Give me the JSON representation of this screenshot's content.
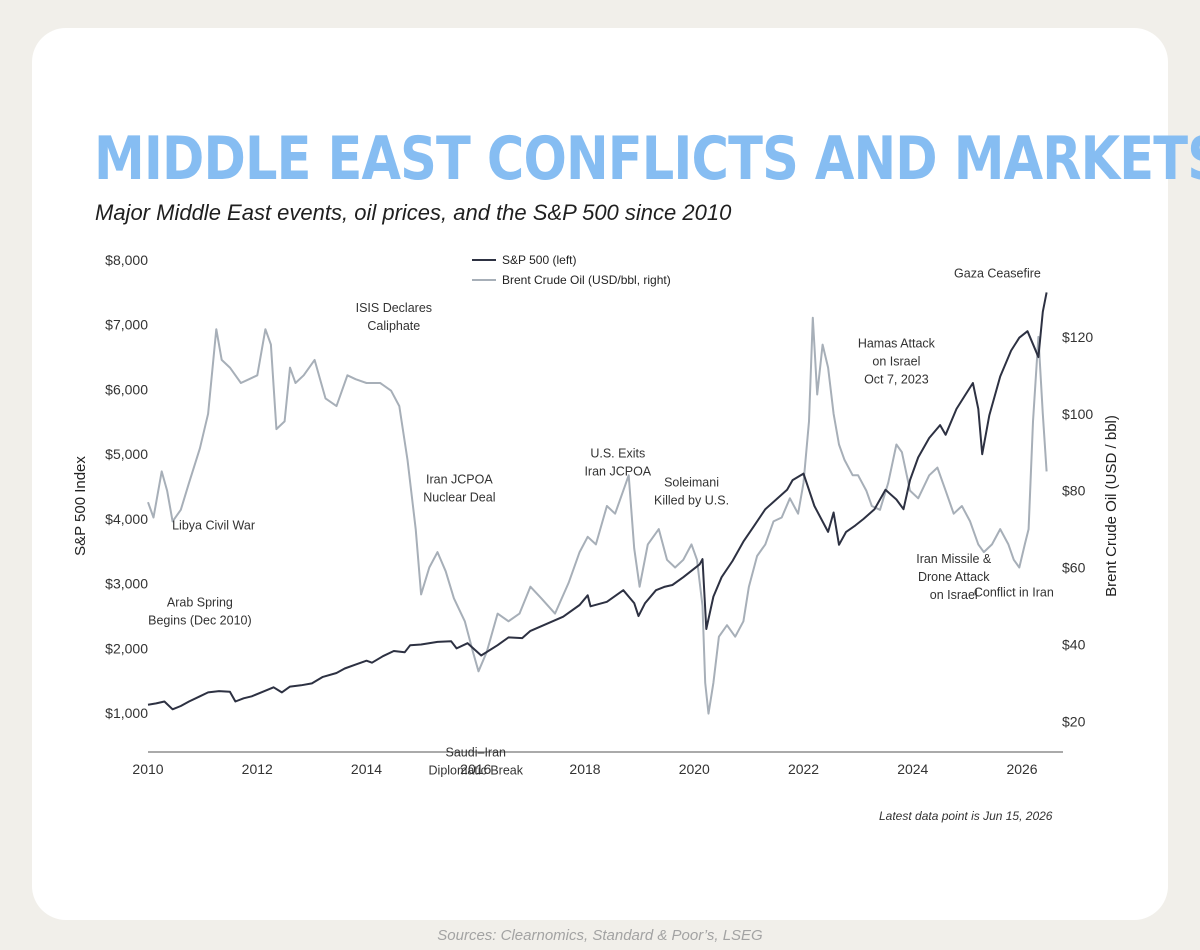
{
  "header": {
    "title": "MIDDLE EAST CONFLICTS AND MARKETS",
    "subtitle": "Major Middle East events, oil prices, and the S&P 500 since 2010"
  },
  "footer": {
    "note": "Latest data point is Jun 15, 2026",
    "sources": "Sources: Clearnomics, Standard & Poor’s, LSEG"
  },
  "colors": {
    "title": "#86bdf2",
    "sp500": "#2d3142",
    "brent": "#a7afb8",
    "background": "#f1efea"
  },
  "chart_data": {
    "type": "line",
    "title": "MIDDLE EAST CONFLICTS AND MARKETS",
    "subtitle": "Major Middle East events, oil prices, and the S&P 500 since 2010",
    "xlabel": "",
    "ylabel": "S&P 500 Index",
    "y2label": "Brent Crude Oil (USD / bbl)",
    "xlim": [
      2010,
      2026.75
    ],
    "ylim": [
      400,
      8000
    ],
    "y2lim": [
      12,
      140
    ],
    "x_ticks": [
      2010,
      2012,
      2014,
      2016,
      2018,
      2020,
      2022,
      2024,
      2026
    ],
    "x_tick_labels": [
      "2010",
      "2012",
      "2014",
      "2016",
      "2018",
      "2020",
      "2022",
      "2024",
      "2026"
    ],
    "y_ticks": [
      1000,
      2000,
      3000,
      4000,
      5000,
      6000,
      7000,
      8000
    ],
    "y_tick_labels": [
      "$1,000",
      "$2,000",
      "$3,000",
      "$4,000",
      "$5,000",
      "$6,000",
      "$7,000",
      "$8,000"
    ],
    "y2_ticks": [
      20,
      40,
      60,
      80,
      100,
      120
    ],
    "y2_tick_labels": [
      "$20",
      "$40",
      "$60",
      "$80",
      "$100",
      "$120"
    ],
    "grid": false,
    "legend_position": "top-center",
    "series": [
      {
        "name": "S&P 500 (left)",
        "axis": "left",
        "x": [
          2010.0,
          2010.15,
          2010.3,
          2010.45,
          2010.6,
          2010.75,
          2010.95,
          2011.1,
          2011.3,
          2011.5,
          2011.6,
          2011.75,
          2011.9,
          2012.1,
          2012.3,
          2012.45,
          2012.6,
          2012.8,
          2013.0,
          2013.2,
          2013.45,
          2013.6,
          2013.8,
          2014.0,
          2014.1,
          2014.3,
          2014.5,
          2014.7,
          2014.8,
          2015.0,
          2015.3,
          2015.55,
          2015.65,
          2015.85,
          2016.1,
          2016.4,
          2016.6,
          2016.85,
          2017.0,
          2017.3,
          2017.6,
          2017.9,
          2018.05,
          2018.1,
          2018.4,
          2018.7,
          2018.9,
          2018.98,
          2019.1,
          2019.3,
          2019.45,
          2019.6,
          2019.8,
          2020.1,
          2020.15,
          2020.22,
          2020.35,
          2020.5,
          2020.7,
          2020.9,
          2021.1,
          2021.3,
          2021.5,
          2021.7,
          2021.8,
          2022.0,
          2022.2,
          2022.45,
          2022.55,
          2022.65,
          2022.78,
          2022.95,
          2023.1,
          2023.3,
          2023.5,
          2023.7,
          2023.83,
          2023.95,
          2024.1,
          2024.3,
          2024.5,
          2024.6,
          2024.8,
          2024.95,
          2025.1,
          2025.2,
          2025.27,
          2025.4,
          2025.6,
          2025.8,
          2025.95,
          2026.1,
          2026.2,
          2026.3,
          2026.38,
          2026.45
        ],
        "values": [
          1130,
          1150,
          1180,
          1060,
          1110,
          1180,
          1260,
          1320,
          1340,
          1330,
          1180,
          1230,
          1260,
          1330,
          1400,
          1320,
          1410,
          1430,
          1460,
          1560,
          1620,
          1690,
          1750,
          1810,
          1780,
          1880,
          1960,
          1940,
          2050,
          2060,
          2100,
          2110,
          2000,
          2080,
          1890,
          2050,
          2170,
          2160,
          2270,
          2380,
          2490,
          2670,
          2820,
          2650,
          2720,
          2900,
          2700,
          2500,
          2700,
          2900,
          2950,
          2980,
          3100,
          3300,
          3380,
          2300,
          2800,
          3100,
          3350,
          3650,
          3900,
          4150,
          4300,
          4450,
          4600,
          4700,
          4200,
          3800,
          4100,
          3600,
          3800,
          3900,
          4000,
          4150,
          4450,
          4300,
          4150,
          4600,
          4950,
          5250,
          5450,
          5300,
          5700,
          5900,
          6100,
          5700,
          5000,
          5600,
          6200,
          6600,
          6800,
          6900,
          6700,
          6500,
          7200,
          7500
        ]
      },
      {
        "name": "Brent Crude Oil (USD/bbl, right)",
        "axis": "right",
        "x": [
          2010.0,
          2010.1,
          2010.25,
          2010.35,
          2010.45,
          2010.6,
          2010.75,
          2010.95,
          2011.1,
          2011.25,
          2011.35,
          2011.5,
          2011.7,
          2011.85,
          2012.0,
          2012.15,
          2012.25,
          2012.35,
          2012.5,
          2012.6,
          2012.7,
          2012.85,
          2013.05,
          2013.25,
          2013.45,
          2013.65,
          2013.8,
          2014.0,
          2014.25,
          2014.45,
          2014.6,
          2014.75,
          2014.9,
          2015.0,
          2015.15,
          2015.3,
          2015.45,
          2015.6,
          2015.8,
          2015.95,
          2016.05,
          2016.2,
          2016.4,
          2016.6,
          2016.8,
          2017.0,
          2017.2,
          2017.45,
          2017.7,
          2017.9,
          2018.05,
          2018.2,
          2018.4,
          2018.55,
          2018.7,
          2018.8,
          2018.9,
          2019.0,
          2019.15,
          2019.35,
          2019.5,
          2019.65,
          2019.8,
          2019.95,
          2020.05,
          2020.15,
          2020.2,
          2020.26,
          2020.35,
          2020.45,
          2020.6,
          2020.75,
          2020.9,
          2021.0,
          2021.15,
          2021.3,
          2021.45,
          2021.6,
          2021.75,
          2021.9,
          2022.0,
          2022.1,
          2022.17,
          2022.25,
          2022.35,
          2022.45,
          2022.55,
          2022.65,
          2022.75,
          2022.9,
          2023.0,
          2023.15,
          2023.25,
          2023.4,
          2023.55,
          2023.7,
          2023.8,
          2023.95,
          2024.1,
          2024.3,
          2024.45,
          2024.6,
          2024.75,
          2024.9,
          2025.05,
          2025.2,
          2025.3,
          2025.45,
          2025.6,
          2025.75,
          2025.85,
          2025.95,
          2026.05,
          2026.12,
          2026.2,
          2026.3,
          2026.38,
          2026.45
        ],
        "values": [
          77,
          73,
          85,
          80,
          72,
          75,
          82,
          91,
          100,
          122,
          114,
          112,
          108,
          109,
          110,
          122,
          118,
          96,
          98,
          112,
          108,
          110,
          114,
          104,
          102,
          110,
          109,
          108,
          108,
          106,
          102,
          88,
          70,
          53,
          60,
          64,
          59,
          52,
          46,
          38,
          33,
          38,
          48,
          46,
          48,
          55,
          52,
          48,
          56,
          64,
          68,
          66,
          76,
          74,
          80,
          84,
          65,
          55,
          66,
          70,
          62,
          60,
          62,
          66,
          62,
          50,
          30,
          22,
          30,
          42,
          45,
          42,
          46,
          55,
          63,
          66,
          72,
          73,
          78,
          74,
          82,
          98,
          125,
          105,
          118,
          112,
          100,
          92,
          88,
          84,
          84,
          80,
          76,
          75,
          82,
          92,
          90,
          80,
          78,
          84,
          86,
          80,
          74,
          76,
          72,
          66,
          64,
          66,
          70,
          66,
          62,
          60,
          66,
          70,
          98,
          120,
          100,
          85
        ]
      }
    ],
    "annotations": [
      {
        "lines": [
          "Libya Civil War"
        ],
        "x": 2011.2,
        "y_axis": "left",
        "y": 3840
      },
      {
        "lines": [
          "Arab Spring",
          "Begins (Dec 2010)"
        ],
        "x": 2010.95,
        "y_axis": "left",
        "y": 2650
      },
      {
        "lines": [
          "ISIS Declares",
          "Caliphate"
        ],
        "x": 2014.5,
        "y_axis": "left",
        "y": 7200
      },
      {
        "lines": [
          "Iran JCPOA",
          "Nuclear Deal"
        ],
        "x": 2015.7,
        "y_axis": "left",
        "y": 4550
      },
      {
        "lines": [
          "Saudi–Iran",
          "Diplomatic Break"
        ],
        "x": 2016.0,
        "y_axis": "left",
        "y": 330
      },
      {
        "lines": [
          "U.S. Exits",
          "Iran JCPOA"
        ],
        "x": 2018.6,
        "y_axis": "left",
        "y": 4950
      },
      {
        "lines": [
          "Soleimani",
          "Killed by U.S."
        ],
        "x": 2019.95,
        "y_axis": "left",
        "y": 4500
      },
      {
        "lines": [
          "Gaza Ceasefire"
        ],
        "x": 2025.55,
        "y_axis": "left",
        "y": 7730
      },
      {
        "lines": [
          "Hamas Attack",
          "on Israel",
          "Oct 7, 2023"
        ],
        "x": 2023.7,
        "y_axis": "left",
        "y": 6650
      },
      {
        "lines": [
          "Iran Missile &",
          "Drone Attack",
          "on Israel"
        ],
        "x": 2024.75,
        "y_axis": "left",
        "y": 3320
      },
      {
        "lines": [
          "Conflict in Iran"
        ],
        "x": 2025.85,
        "y_axis": "left",
        "y": 2800
      }
    ]
  }
}
